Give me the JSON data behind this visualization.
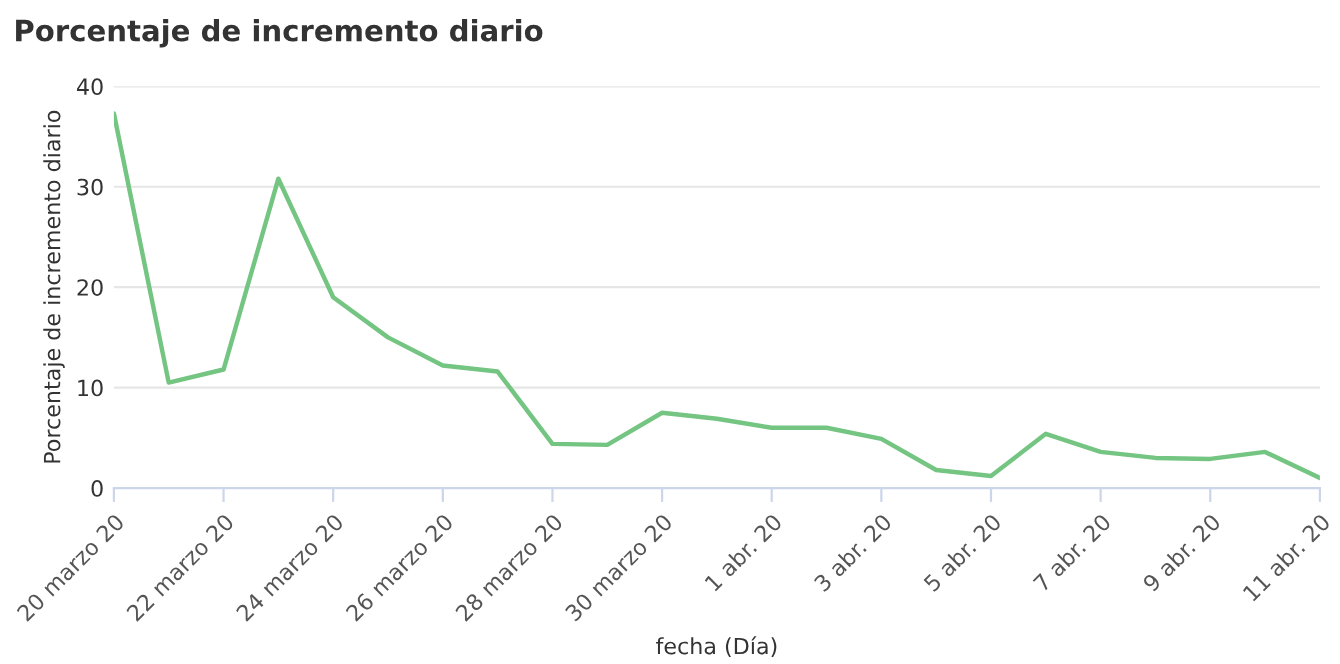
{
  "chart_data": {
    "type": "line",
    "title": "Porcentaje de incremento diario",
    "xlabel": "fecha (Día)",
    "ylabel": "Porcentaje de incremento diario",
    "categories": [
      "20 marzo 20",
      null,
      "22 marzo 20",
      null,
      "24 marzo 20",
      null,
      "26 marzo 20",
      null,
      "28 marzo 20",
      null,
      "30 marzo 20",
      null,
      "1 abr. 20",
      null,
      "3 abr. 20",
      null,
      "5 abr. 20",
      null,
      "7 abr. 20",
      null,
      "9 abr. 20",
      null,
      "11 abr. 20"
    ],
    "series": [
      {
        "color": "#74c482",
        "values": [
          37.3,
          10.5,
          11.8,
          30.8,
          19.0,
          15.0,
          12.2,
          11.6,
          4.4,
          4.3,
          7.5,
          6.9,
          6.0,
          6.0,
          4.9,
          1.8,
          1.2,
          5.4,
          3.6,
          3.0,
          2.9,
          3.6,
          1.0
        ]
      }
    ],
    "ylim": [
      0,
      40
    ],
    "yticks": [
      0,
      10,
      20,
      30,
      40
    ],
    "grid": "y",
    "marker": "none",
    "line_style": "solid"
  }
}
